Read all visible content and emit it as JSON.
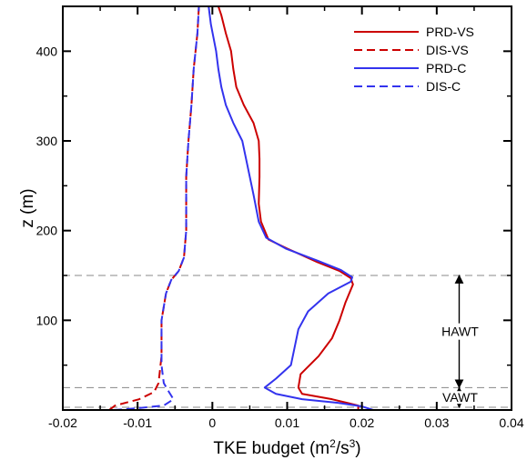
{
  "chart_data": {
    "type": "line",
    "xlabel": "TKE budget (m²/s³)",
    "xlabel_parts": {
      "prefix": "TKE budget (m",
      "sup1": "2",
      "mid": "/s",
      "sup2": "3",
      "suffix": ")"
    },
    "ylabel": "z (m)",
    "xlim": [
      -0.02,
      0.04
    ],
    "ylim": [
      0,
      450
    ],
    "x_ticks": [
      -0.02,
      -0.01,
      0,
      0.01,
      0.02,
      0.03,
      0.04
    ],
    "x_tick_labels": [
      "-0.02",
      "-0.01",
      "0",
      "0.01",
      "0.02",
      "0.03",
      "0.04"
    ],
    "y_ticks": [
      100,
      200,
      300,
      400
    ],
    "y_tick_labels": [
      "100",
      "200",
      "300",
      "400"
    ],
    "legend_position": "top-right",
    "series": [
      {
        "name": "PRD-VS",
        "color": "#cc0000",
        "dash": "solid",
        "points": [
          [
            0.0195,
            0
          ],
          [
            0.0195,
            5
          ],
          [
            0.016,
            12
          ],
          [
            0.012,
            18
          ],
          [
            0.0115,
            25
          ],
          [
            0.0118,
            40
          ],
          [
            0.0142,
            60
          ],
          [
            0.016,
            80
          ],
          [
            0.017,
            100
          ],
          [
            0.0178,
            120
          ],
          [
            0.0188,
            140
          ],
          [
            0.0185,
            147
          ],
          [
            0.017,
            155
          ],
          [
            0.014,
            165
          ],
          [
            0.01,
            180
          ],
          [
            0.0075,
            190
          ],
          [
            0.0065,
            210
          ],
          [
            0.0062,
            230
          ],
          [
            0.0063,
            260
          ],
          [
            0.0063,
            280
          ],
          [
            0.0062,
            300
          ],
          [
            0.0055,
            320
          ],
          [
            0.0042,
            340
          ],
          [
            0.0032,
            360
          ],
          [
            0.0028,
            380
          ],
          [
            0.0025,
            400
          ],
          [
            0.0018,
            420
          ],
          [
            0.0012,
            440
          ],
          [
            0.0008,
            450
          ]
        ]
      },
      {
        "name": "DIS-VS",
        "color": "#cc0000",
        "dash": "dashed",
        "points": [
          [
            -0.0138,
            0
          ],
          [
            -0.013,
            5
          ],
          [
            -0.0098,
            12
          ],
          [
            -0.0078,
            20
          ],
          [
            -0.0072,
            30
          ],
          [
            -0.0068,
            60
          ],
          [
            -0.0068,
            80
          ],
          [
            -0.0068,
            100
          ],
          [
            -0.0062,
            130
          ],
          [
            -0.0055,
            145
          ],
          [
            -0.0045,
            155
          ],
          [
            -0.0038,
            170
          ],
          [
            -0.0035,
            200
          ],
          [
            -0.0035,
            260
          ],
          [
            -0.0032,
            300
          ],
          [
            -0.0028,
            340
          ],
          [
            -0.0025,
            380
          ],
          [
            -0.002,
            420
          ],
          [
            -0.0018,
            450
          ]
        ]
      },
      {
        "name": "PRD-C",
        "color": "#3333ee",
        "dash": "solid",
        "points": [
          [
            0.0215,
            0
          ],
          [
            0.02,
            4
          ],
          [
            0.0168,
            8
          ],
          [
            0.012,
            12
          ],
          [
            0.0085,
            18
          ],
          [
            0.007,
            25
          ],
          [
            0.0085,
            35
          ],
          [
            0.0105,
            50
          ],
          [
            0.011,
            70
          ],
          [
            0.0115,
            90
          ],
          [
            0.0128,
            110
          ],
          [
            0.0155,
            130
          ],
          [
            0.0185,
            143
          ],
          [
            0.0187,
            148
          ],
          [
            0.0172,
            156
          ],
          [
            0.0142,
            166
          ],
          [
            0.0098,
            180
          ],
          [
            0.0072,
            192
          ],
          [
            0.0062,
            210
          ],
          [
            0.0055,
            240
          ],
          [
            0.005,
            260
          ],
          [
            0.0045,
            280
          ],
          [
            0.004,
            300
          ],
          [
            0.0028,
            320
          ],
          [
            0.0018,
            340
          ],
          [
            0.0012,
            360
          ],
          [
            0.0008,
            380
          ],
          [
            0.0005,
            400
          ],
          [
            -0.0002,
            430
          ],
          [
            -0.0005,
            450
          ]
        ]
      },
      {
        "name": "DIS-C",
        "color": "#3333ee",
        "dash": "dashed",
        "points": [
          [
            -0.0132,
            0
          ],
          [
            -0.01,
            2
          ],
          [
            -0.0065,
            5
          ],
          [
            -0.0052,
            12
          ],
          [
            -0.0058,
            20
          ],
          [
            -0.0065,
            30
          ],
          [
            -0.0068,
            50
          ],
          [
            -0.0068,
            80
          ],
          [
            -0.0068,
            100
          ],
          [
            -0.0062,
            130
          ],
          [
            -0.0055,
            145
          ],
          [
            -0.0045,
            155
          ],
          [
            -0.0038,
            170
          ],
          [
            -0.0035,
            200
          ],
          [
            -0.0035,
            260
          ],
          [
            -0.0032,
            300
          ],
          [
            -0.0028,
            340
          ],
          [
            -0.0025,
            380
          ],
          [
            -0.002,
            420
          ],
          [
            -0.0018,
            450
          ]
        ]
      }
    ],
    "reference_lines": [
      {
        "orientation": "horizontal",
        "value": 150,
        "color": "#888888",
        "dash": "dashed"
      },
      {
        "orientation": "horizontal",
        "value": 25,
        "color": "#888888",
        "dash": "dashed"
      },
      {
        "orientation": "horizontal",
        "value": 3,
        "color": "#888888",
        "dash": "dashed"
      }
    ],
    "annotations": [
      {
        "label": "HAWT",
        "x": 0.033,
        "y_from": 150,
        "y_to": 25,
        "line_style": "solid"
      },
      {
        "label": "VAWT",
        "x": 0.033,
        "y_from": 25,
        "y_to": 3,
        "line_style": "dotted"
      }
    ]
  }
}
